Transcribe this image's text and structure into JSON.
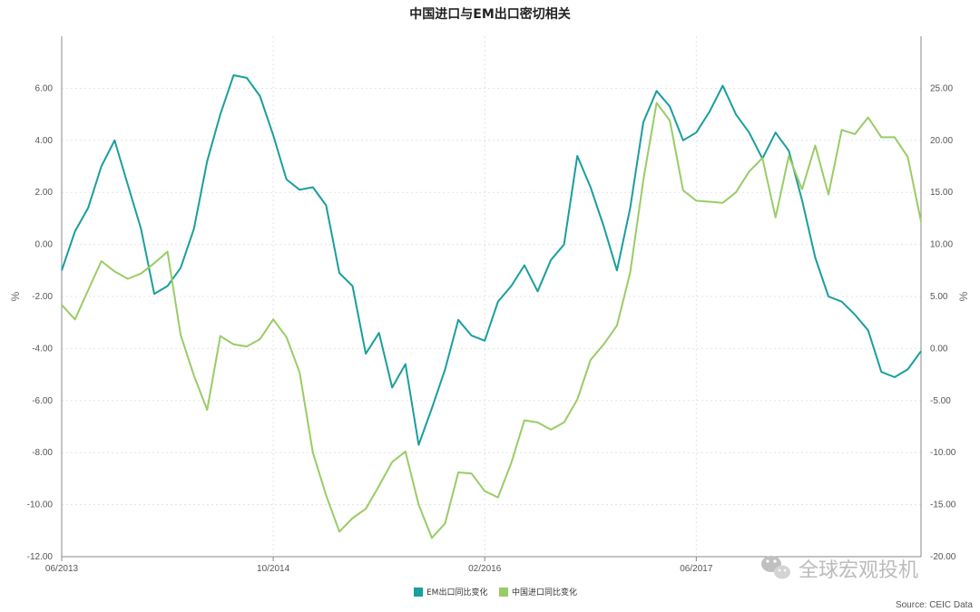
{
  "chart_data": {
    "type": "line",
    "title": "中国进口与EM出口密切相关",
    "x_tick_labels": [
      "06/2013",
      "10/2014",
      "02/2016",
      "06/2017"
    ],
    "x_start": "06/2013",
    "x_end": "12/2018",
    "left_axis": {
      "unit": "%",
      "ylim": [
        -12,
        8
      ],
      "ticks": [
        -12,
        -10,
        -8,
        -6,
        -4,
        -2,
        0,
        2,
        4,
        6
      ],
      "tick_labels": [
        "-12.00",
        "-10.00",
        "-8.00",
        "-6.00",
        "-4.00",
        "-2.00",
        "0.00",
        "2.00",
        "4.00",
        "6.00"
      ]
    },
    "right_axis": {
      "unit": "%",
      "ylim": [
        -20,
        30
      ],
      "ticks": [
        -20,
        -15,
        -10,
        -5,
        0,
        5,
        10,
        15,
        20,
        25
      ],
      "tick_labels": [
        "-20.00",
        "-15.00",
        "-10.00",
        "-5.00",
        "0.00",
        "5.00",
        "10.00",
        "15.00",
        "20.00",
        "25.00"
      ]
    },
    "grid": true,
    "legend_position": "bottom-center",
    "series": [
      {
        "name": "EM出口同比变化",
        "axis": "left",
        "color": "#1a9e9e",
        "values": [
          -1.0,
          0.5,
          1.4,
          3.0,
          4.0,
          2.3,
          0.6,
          -1.9,
          -1.6,
          -0.9,
          0.6,
          3.2,
          5.0,
          6.5,
          6.4,
          5.7,
          4.2,
          2.5,
          2.1,
          2.2,
          1.5,
          -1.1,
          -1.6,
          -4.2,
          -3.4,
          -5.5,
          -4.6,
          -7.7,
          -6.3,
          -4.8,
          -2.9,
          -3.5,
          -3.7,
          -2.2,
          -1.6,
          -0.8,
          -1.8,
          -0.6,
          0.0,
          3.4,
          2.2,
          0.7,
          -1.0,
          1.4,
          4.7,
          5.9,
          5.3,
          4.0,
          4.3,
          5.1,
          6.1,
          5.0,
          4.3,
          3.3,
          4.3,
          3.6,
          1.7,
          -0.5,
          -2.0,
          -2.2,
          -2.7,
          -3.3,
          -4.9,
          -5.1,
          -4.8,
          -4.1
        ]
      },
      {
        "name": "中国进口同比变化",
        "axis": "right",
        "color": "#99cc66",
        "values": [
          4.2,
          2.8,
          5.6,
          8.4,
          7.4,
          6.7,
          7.2,
          8.2,
          9.3,
          1.3,
          -2.6,
          -5.9,
          1.2,
          0.4,
          0.2,
          0.9,
          2.8,
          1.1,
          -2.3,
          -10.0,
          -14.1,
          -17.6,
          -16.3,
          -15.4,
          -13.2,
          -10.9,
          -9.9,
          -15.0,
          -18.2,
          -16.8,
          -11.9,
          -12.0,
          -13.7,
          -14.3,
          -11.0,
          -6.9,
          -7.1,
          -7.8,
          -7.1,
          -4.9,
          -1.1,
          0.4,
          2.2,
          7.3,
          16.2,
          23.6,
          21.9,
          15.2,
          14.2,
          14.1,
          14.0,
          15.0,
          17.0,
          18.3,
          12.6,
          18.5,
          15.3,
          19.5,
          14.8,
          21.0,
          20.6,
          22.2,
          20.3,
          20.3,
          18.4,
          12.2
        ]
      }
    ],
    "legend": [
      "EM出口同比变化",
      "中国进口同比变化"
    ]
  },
  "watermark": "全球宏观投机",
  "source": "Source: CEIC Data"
}
